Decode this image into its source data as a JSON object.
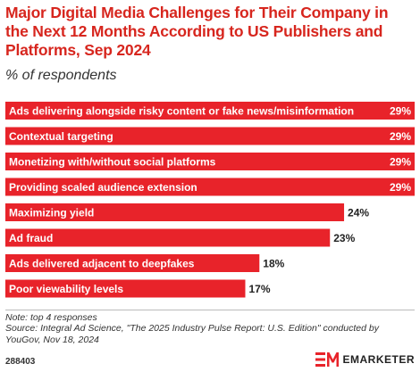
{
  "chart_data": {
    "type": "bar",
    "orientation": "horizontal",
    "title": "Major Digital Media Challenges for Their Company in the Next 12 Months According to US Publishers and Platforms, Sep 2024",
    "subtitle": "% of respondents",
    "categories": [
      "Ads delivering alongside risky content or fake news/misinformation",
      "Contextual targeting",
      "Monetizing with/without social platforms",
      "Providing scaled audience extension",
      "Maximizing yield",
      "Ad fraud",
      "Ads delivered adjacent to deepfakes",
      "Poor viewability levels"
    ],
    "values": [
      29,
      29,
      29,
      29,
      24,
      23,
      18,
      17
    ],
    "value_labels": [
      "29%",
      "29%",
      "29%",
      "29%",
      "24%",
      "23%",
      "18%",
      "17%"
    ],
    "xlim": [
      0,
      29
    ],
    "grid": false,
    "legend": "none",
    "bar_color": "#e8232a"
  },
  "note": "Note: top 4 responses",
  "source": "Source: Integral Ad Science, \"The 2025 Industry Pulse Report: U.S. Edition\" conducted by YouGov, Nov 18, 2024",
  "chart_id": "288403",
  "brand": {
    "name": "EMARKETER",
    "logo_icon": "em-logo-icon",
    "logo_color": "#e8232a"
  }
}
